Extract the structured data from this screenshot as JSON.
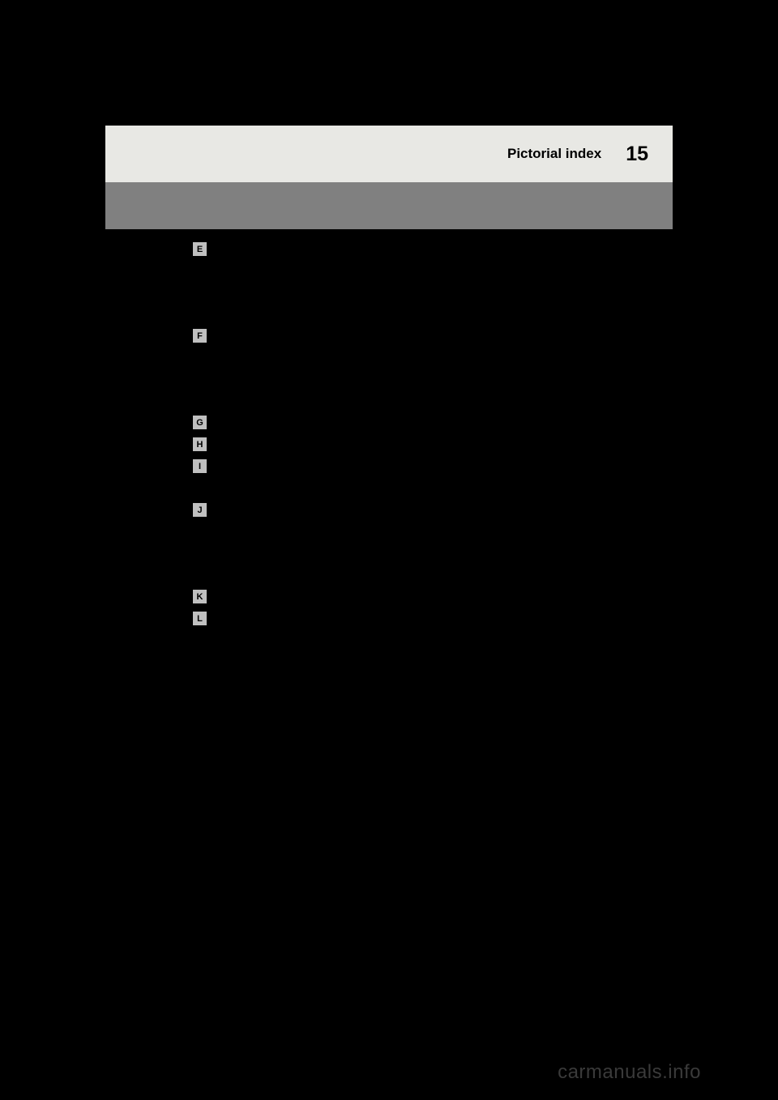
{
  "header": {
    "title": "Pictorial index",
    "page_number": "15"
  },
  "index_items": [
    {
      "letter": "E",
      "spacing_class": "group-e"
    },
    {
      "letter": "F",
      "spacing_class": "group-f"
    },
    {
      "letter": "G",
      "spacing_class": "group-g"
    },
    {
      "letter": "H",
      "spacing_class": "group-h"
    },
    {
      "letter": "I",
      "spacing_class": "group-i"
    },
    {
      "letter": "J",
      "spacing_class": "group-j"
    },
    {
      "letter": "K",
      "spacing_class": "group-k"
    },
    {
      "letter": "L",
      "spacing_class": "group-l"
    }
  ],
  "watermark": "carmanuals.info",
  "colors": {
    "background": "#000000",
    "header_bg": "#e8e8e4",
    "gray_band": "#808080",
    "box_fill": "#c0c0c0",
    "box_border": "#000000",
    "text": "#000000",
    "watermark": "#3a3a3a"
  }
}
